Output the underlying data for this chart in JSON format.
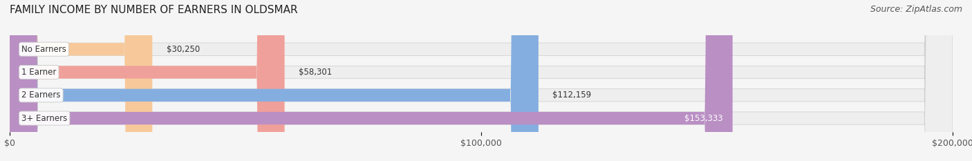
{
  "title": "FAMILY INCOME BY NUMBER OF EARNERS IN OLDSMAR",
  "source": "Source: ZipAtlas.com",
  "categories": [
    "No Earners",
    "1 Earner",
    "2 Earners",
    "3+ Earners"
  ],
  "values": [
    30250,
    58301,
    112159,
    153333
  ],
  "bar_colors": [
    "#f7c99a",
    "#f0a09a",
    "#85aee0",
    "#b98fc4"
  ],
  "label_colors": [
    "#333333",
    "#333333",
    "#333333",
    "#ffffff"
  ],
  "bar_bg_color": "#eeeeee",
  "background_color": "#f5f5f5",
  "xlim": [
    0,
    200000
  ],
  "xticks": [
    0,
    100000,
    200000
  ],
  "xtick_labels": [
    "$0",
    "$100,000",
    "$200,000"
  ],
  "value_labels": [
    "$30,250",
    "$58,301",
    "$112,159",
    "$153,333"
  ],
  "title_fontsize": 11,
  "source_fontsize": 9,
  "bar_height": 0.55,
  "figsize": [
    14.06,
    2.33
  ]
}
